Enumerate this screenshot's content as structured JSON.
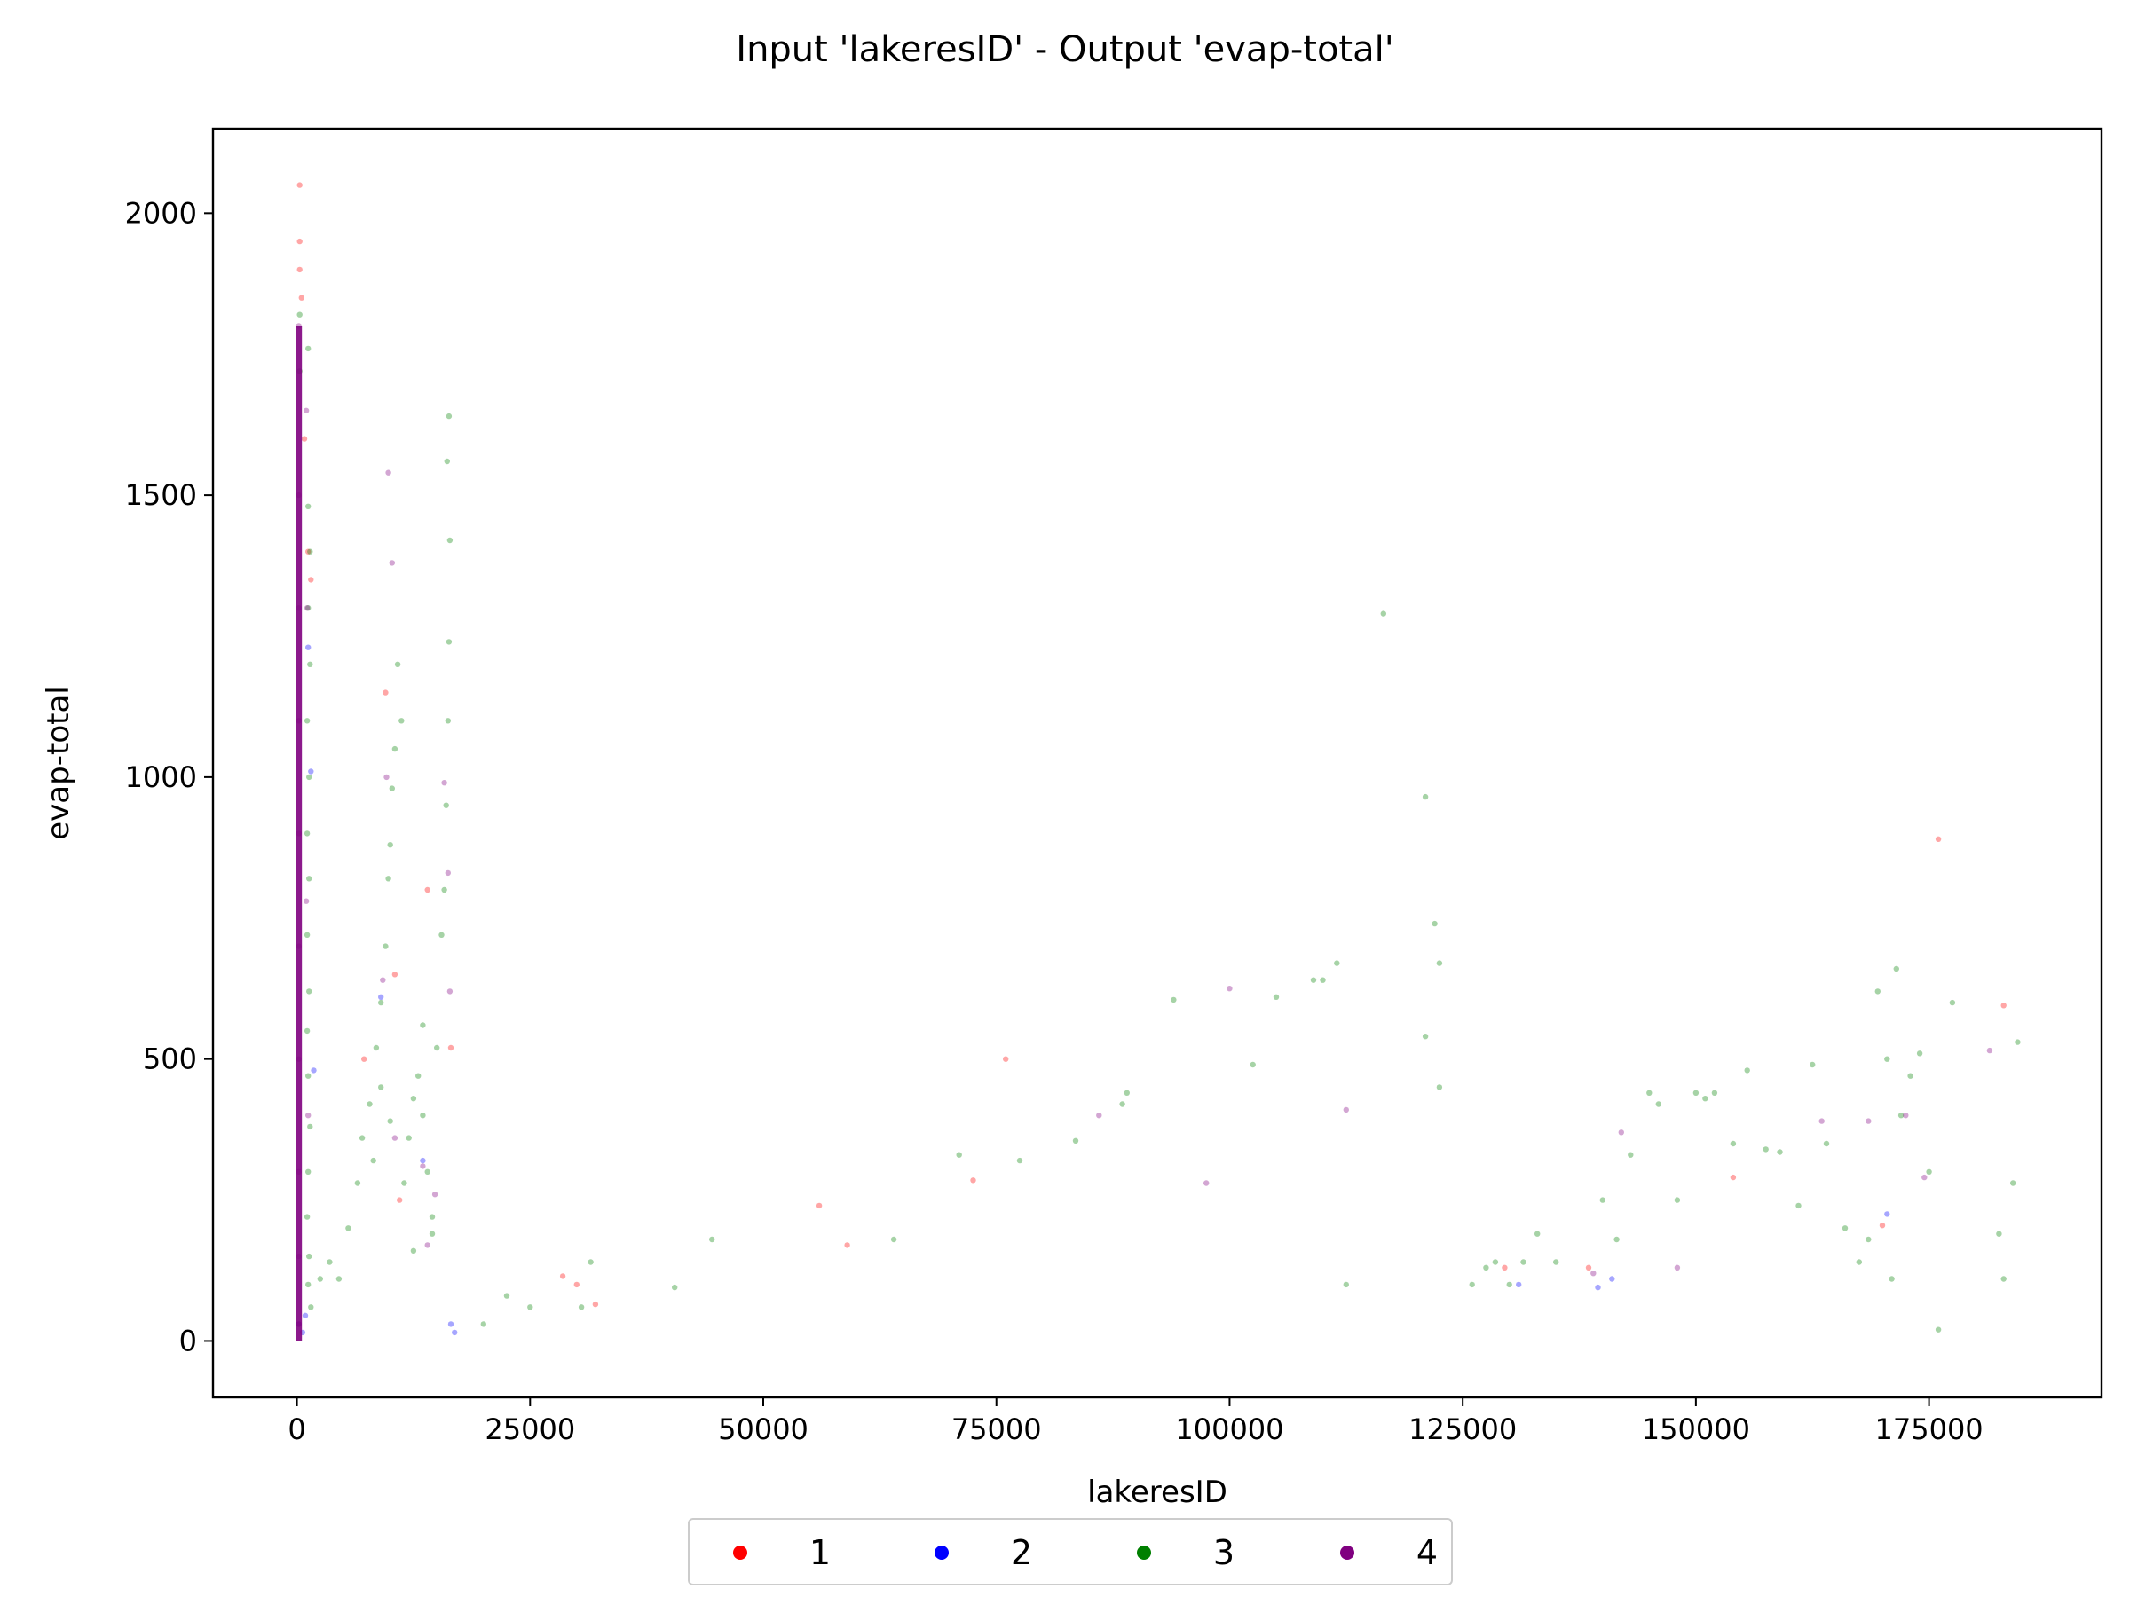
{
  "chart_data": {
    "type": "scatter",
    "title": "Input 'lakeresID' - Output 'evap-total'",
    "xlabel": "lakeresID",
    "ylabel": "evap-total",
    "xlim": [
      -9000,
      193500
    ],
    "ylim": [
      -100,
      2150
    ],
    "xticks": [
      0,
      25000,
      50000,
      75000,
      100000,
      125000,
      150000,
      175000
    ],
    "xtick_labels": [
      "0",
      "25000",
      "50000",
      "75000",
      "100000",
      "125000",
      "150000",
      "175000"
    ],
    "yticks": [
      0,
      500,
      1000,
      1500,
      2000
    ],
    "ytick_labels": [
      "0",
      "500",
      "1000",
      "1500",
      "2000"
    ],
    "grid": false,
    "legend_position": "bottom-center",
    "series": [
      {
        "name": "1",
        "color": "#ff0000",
        "points": [
          [
            300,
            2050
          ],
          [
            300,
            1950
          ],
          [
            300,
            1900
          ],
          [
            500,
            1850
          ],
          [
            800,
            1600
          ],
          [
            1200,
            1400
          ],
          [
            1500,
            1350
          ],
          [
            9500,
            1150
          ],
          [
            10500,
            650
          ],
          [
            14000,
            800
          ],
          [
            7200,
            500
          ],
          [
            11000,
            250
          ],
          [
            16500,
            520
          ],
          [
            28500,
            115
          ],
          [
            30000,
            100
          ],
          [
            32000,
            65
          ],
          [
            56000,
            240
          ],
          [
            59000,
            170
          ],
          [
            76000,
            500
          ],
          [
            72500,
            285
          ],
          [
            154000,
            290
          ],
          [
            183000,
            595
          ],
          [
            176000,
            890
          ],
          [
            129500,
            130
          ],
          [
            138500,
            130
          ],
          [
            170000,
            205
          ]
        ]
      },
      {
        "name": "2",
        "color": "#0000ff",
        "points": [
          [
            200,
            30
          ],
          [
            600,
            15
          ],
          [
            900,
            45
          ],
          [
            1200,
            1230
          ],
          [
            1500,
            1010
          ],
          [
            1800,
            480
          ],
          [
            9000,
            610
          ],
          [
            13500,
            320
          ],
          [
            16900,
            15
          ],
          [
            16500,
            30
          ],
          [
            139500,
            95
          ],
          [
            141000,
            110
          ],
          [
            170500,
            225
          ],
          [
            131000,
            100
          ]
        ]
      },
      {
        "name": "3",
        "color": "#008000",
        "points": [
          [
            300,
            1820
          ],
          [
            300,
            1720
          ],
          [
            1200,
            1760
          ],
          [
            1200,
            1480
          ],
          [
            1400,
            1400
          ],
          [
            1200,
            1300
          ],
          [
            1400,
            1200
          ],
          [
            1100,
            1100
          ],
          [
            1300,
            1000
          ],
          [
            1100,
            900
          ],
          [
            1300,
            820
          ],
          [
            1100,
            720
          ],
          [
            1300,
            620
          ],
          [
            1100,
            550
          ],
          [
            1200,
            470
          ],
          [
            1400,
            380
          ],
          [
            1200,
            300
          ],
          [
            1100,
            220
          ],
          [
            1300,
            150
          ],
          [
            1200,
            100
          ],
          [
            1500,
            60
          ],
          [
            2500,
            110
          ],
          [
            3500,
            140
          ],
          [
            4500,
            110
          ],
          [
            5500,
            200
          ],
          [
            6500,
            280
          ],
          [
            7000,
            360
          ],
          [
            7800,
            420
          ],
          [
            8500,
            520
          ],
          [
            9000,
            600
          ],
          [
            9500,
            700
          ],
          [
            9800,
            820
          ],
          [
            10000,
            880
          ],
          [
            10200,
            980
          ],
          [
            10500,
            1050
          ],
          [
            10800,
            1200
          ],
          [
            11200,
            1100
          ],
          [
            8200,
            320
          ],
          [
            9000,
            450
          ],
          [
            10000,
            390
          ],
          [
            11500,
            280
          ],
          [
            12000,
            360
          ],
          [
            12500,
            430
          ],
          [
            13000,
            470
          ],
          [
            13500,
            400
          ],
          [
            14000,
            300
          ],
          [
            14500,
            220
          ],
          [
            15000,
            520
          ],
          [
            15500,
            720
          ],
          [
            15800,
            800
          ],
          [
            16000,
            950
          ],
          [
            16200,
            1100
          ],
          [
            16300,
            1240
          ],
          [
            16400,
            1420
          ],
          [
            16100,
            1560
          ],
          [
            16300,
            1640
          ],
          [
            13500,
            560
          ],
          [
            12500,
            160
          ],
          [
            14500,
            190
          ],
          [
            20000,
            30
          ],
          [
            22500,
            80
          ],
          [
            25000,
            60
          ],
          [
            30500,
            60
          ],
          [
            31500,
            140
          ],
          [
            40500,
            95
          ],
          [
            44500,
            180
          ],
          [
            64000,
            180
          ],
          [
            71000,
            330
          ],
          [
            77500,
            320
          ],
          [
            83500,
            355
          ],
          [
            88500,
            420
          ],
          [
            89000,
            440
          ],
          [
            94000,
            605
          ],
          [
            102500,
            490
          ],
          [
            105000,
            610
          ],
          [
            109000,
            640
          ],
          [
            110000,
            640
          ],
          [
            111500,
            670
          ],
          [
            112500,
            100
          ],
          [
            116500,
            1290
          ],
          [
            121000,
            965
          ],
          [
            122000,
            740
          ],
          [
            122500,
            670
          ],
          [
            122500,
            450
          ],
          [
            121000,
            540
          ],
          [
            126000,
            100
          ],
          [
            127500,
            130
          ],
          [
            128500,
            140
          ],
          [
            130000,
            100
          ],
          [
            131500,
            140
          ],
          [
            133000,
            190
          ],
          [
            135000,
            140
          ],
          [
            140000,
            250
          ],
          [
            141500,
            180
          ],
          [
            143000,
            330
          ],
          [
            145000,
            440
          ],
          [
            146000,
            420
          ],
          [
            148000,
            250
          ],
          [
            150000,
            440
          ],
          [
            151000,
            430
          ],
          [
            152000,
            440
          ],
          [
            154000,
            350
          ],
          [
            155500,
            480
          ],
          [
            157500,
            340
          ],
          [
            159000,
            335
          ],
          [
            161000,
            240
          ],
          [
            162500,
            490
          ],
          [
            164000,
            350
          ],
          [
            166000,
            200
          ],
          [
            167500,
            140
          ],
          [
            168500,
            180
          ],
          [
            169500,
            620
          ],
          [
            170500,
            500
          ],
          [
            171000,
            110
          ],
          [
            171500,
            660
          ],
          [
            172000,
            400
          ],
          [
            173000,
            470
          ],
          [
            174000,
            510
          ],
          [
            175000,
            300
          ],
          [
            176000,
            20
          ],
          [
            177500,
            600
          ],
          [
            182500,
            190
          ],
          [
            183000,
            110
          ],
          [
            184000,
            280
          ],
          [
            184500,
            530
          ]
        ]
      },
      {
        "name": "4",
        "color": "#800080",
        "points": [
          [
            200,
            1800
          ],
          [
            200,
            1500
          ],
          [
            200,
            1300
          ],
          [
            200,
            1100
          ],
          [
            200,
            900
          ],
          [
            200,
            700
          ],
          [
            200,
            500
          ],
          [
            200,
            300
          ],
          [
            200,
            150
          ],
          [
            200,
            30
          ],
          [
            1000,
            1650
          ],
          [
            1100,
            1300
          ],
          [
            1000,
            780
          ],
          [
            1200,
            400
          ],
          [
            9800,
            1540
          ],
          [
            10200,
            1380
          ],
          [
            9600,
            1000
          ],
          [
            9200,
            640
          ],
          [
            10500,
            360
          ],
          [
            13500,
            310
          ],
          [
            14000,
            170
          ],
          [
            15800,
            990
          ],
          [
            16200,
            830
          ],
          [
            16400,
            620
          ],
          [
            14800,
            260
          ],
          [
            86000,
            400
          ],
          [
            97500,
            280
          ],
          [
            100000,
            625
          ],
          [
            112500,
            410
          ],
          [
            139000,
            120
          ],
          [
            142000,
            370
          ],
          [
            148000,
            130
          ],
          [
            163500,
            390
          ],
          [
            168500,
            390
          ],
          [
            172500,
            400
          ],
          [
            174500,
            290
          ],
          [
            181500,
            515
          ]
        ]
      }
    ]
  }
}
